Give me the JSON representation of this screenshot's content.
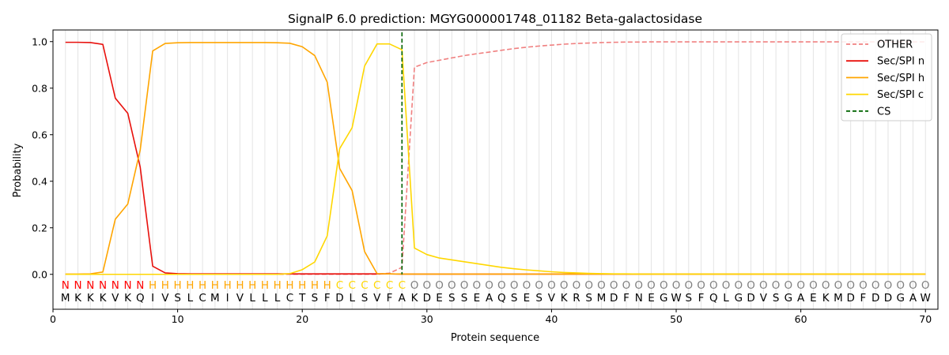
{
  "chart_data": {
    "type": "line",
    "title": "SignalP 6.0 prediction: MGYG000001748_01182 Beta-galactosidase",
    "xlabel": "Protein sequence",
    "ylabel": "Probability",
    "xlim": [
      0,
      71
    ],
    "ylim": [
      -0.15,
      1.05
    ],
    "xticks": [
      0,
      10,
      20,
      30,
      40,
      50,
      60,
      70
    ],
    "yticks": [
      "0.0",
      "0.2",
      "0.4",
      "0.6",
      "0.8",
      "1.0"
    ],
    "ytick_values": [
      0.0,
      0.2,
      0.4,
      0.6,
      0.8,
      1.0
    ],
    "grid": "vertical lines at each residue",
    "legend_position": "top-right",
    "sequence": [
      "M",
      "K",
      "K",
      "K",
      "V",
      "K",
      "Q",
      "I",
      "V",
      "S",
      "L",
      "C",
      "M",
      "I",
      "V",
      "L",
      "L",
      "L",
      "C",
      "T",
      "S",
      "F",
      "D",
      "L",
      "S",
      "V",
      "F",
      "A",
      "K",
      "D",
      "E",
      "S",
      "S",
      "E",
      "A",
      "Q",
      "S",
      "E",
      "S",
      "V",
      "K",
      "R",
      "S",
      "M",
      "D",
      "F",
      "N",
      "E",
      "G",
      "W",
      "S",
      "F",
      "Q",
      "L",
      "G",
      "D",
      "V",
      "S",
      "G",
      "A",
      "E",
      "K",
      "M",
      "D",
      "F",
      "D",
      "D",
      "G",
      "A",
      "W"
    ],
    "labels": [
      "N",
      "N",
      "N",
      "N",
      "N",
      "N",
      "N",
      "H",
      "H",
      "H",
      "H",
      "H",
      "H",
      "H",
      "H",
      "H",
      "H",
      "H",
      "H",
      "H",
      "H",
      "H",
      "C",
      "C",
      "C",
      "C",
      "C",
      "C",
      "O",
      "O",
      "O",
      "O",
      "O",
      "O",
      "O",
      "O",
      "O",
      "O",
      "O",
      "O",
      "O",
      "O",
      "O",
      "O",
      "O",
      "O",
      "O",
      "O",
      "O",
      "O",
      "O",
      "O",
      "O",
      "O",
      "O",
      "O",
      "O",
      "O",
      "O",
      "O",
      "O",
      "O",
      "O",
      "O",
      "O",
      "O",
      "O",
      "O",
      "O",
      "O"
    ],
    "label_colors": {
      "N": "#ff0000",
      "H": "#ffa500",
      "C": "#ffd700",
      "O": "#808080"
    },
    "cleavage_site": 28,
    "series": [
      {
        "name": "OTHER",
        "color": "#f08080",
        "dash": "dashed",
        "values": [
          0.0,
          0.0,
          0.0,
          0.0,
          0.0,
          0.0,
          0.0,
          0.0,
          0.0,
          0.0,
          0.0,
          0.0,
          0.0,
          0.0,
          0.0,
          0.0,
          0.0,
          0.0,
          0.0,
          0.0,
          0.0,
          0.0,
          0.0,
          0.0,
          0.0,
          0.0,
          0.005,
          0.03,
          0.89,
          0.91,
          0.92,
          0.93,
          0.94,
          0.948,
          0.955,
          0.963,
          0.97,
          0.976,
          0.981,
          0.985,
          0.989,
          0.992,
          0.994,
          0.996,
          0.997,
          0.998,
          0.998,
          0.999,
          0.999,
          0.999,
          0.999,
          0.999,
          0.999,
          0.999,
          0.999,
          0.999,
          0.999,
          0.999,
          0.999,
          0.999,
          0.999,
          0.999,
          0.999,
          0.999,
          0.999,
          0.999,
          0.999,
          0.999,
          0.999,
          0.999
        ]
      },
      {
        "name": "Sec/SPI n",
        "color": "#e8100c",
        "dash": "solid",
        "values": [
          0.997,
          0.997,
          0.996,
          0.988,
          0.757,
          0.692,
          0.46,
          0.035,
          0.006,
          0.003,
          0.002,
          0.002,
          0.002,
          0.002,
          0.002,
          0.002,
          0.002,
          0.002,
          0.002,
          0.002,
          0.002,
          0.002,
          0.002,
          0.002,
          0.002,
          0.002,
          0.002,
          0.001,
          0.001,
          0.001,
          0.001,
          0.001,
          0.001,
          0.001,
          0.001,
          0.001,
          0.001,
          0.001,
          0.001,
          0.001,
          0.001,
          0.001,
          0.001,
          0.001,
          0.001,
          0.001,
          0.001,
          0.001,
          0.001,
          0.001,
          0.001,
          0.001,
          0.001,
          0.001,
          0.001,
          0.001,
          0.001,
          0.001,
          0.001,
          0.001,
          0.001,
          0.001,
          0.001,
          0.001,
          0.001,
          0.001,
          0.001,
          0.001,
          0.001,
          0.001
        ]
      },
      {
        "name": "Sec/SPI h",
        "color": "#ffa500",
        "dash": "solid",
        "values": [
          0.001,
          0.001,
          0.002,
          0.01,
          0.237,
          0.302,
          0.535,
          0.96,
          0.992,
          0.995,
          0.996,
          0.996,
          0.996,
          0.996,
          0.996,
          0.996,
          0.996,
          0.995,
          0.993,
          0.978,
          0.94,
          0.826,
          0.455,
          0.36,
          0.098,
          0.003,
          0.002,
          0.001,
          0.001,
          0.001,
          0.001,
          0.001,
          0.001,
          0.001,
          0.001,
          0.001,
          0.001,
          0.001,
          0.001,
          0.001,
          0.001,
          0.001,
          0.001,
          0.001,
          0.001,
          0.001,
          0.001,
          0.001,
          0.001,
          0.001,
          0.001,
          0.001,
          0.001,
          0.001,
          0.001,
          0.001,
          0.001,
          0.001,
          0.001,
          0.001,
          0.001,
          0.001,
          0.001,
          0.001,
          0.001,
          0.001,
          0.001,
          0.001,
          0.001,
          0.001
        ]
      },
      {
        "name": "Sec/SPI c",
        "color": "#ffd700",
        "dash": "solid",
        "values": [
          0.0,
          0.0,
          0.0,
          0.0,
          0.0,
          0.0,
          0.0,
          0.0,
          0.0,
          0.0,
          0.0,
          0.0,
          0.0,
          0.0,
          0.0,
          0.0,
          0.0,
          0.0,
          0.003,
          0.02,
          0.053,
          0.165,
          0.54,
          0.63,
          0.895,
          0.99,
          0.99,
          0.965,
          0.113,
          0.085,
          0.07,
          0.062,
          0.054,
          0.046,
          0.038,
          0.03,
          0.024,
          0.019,
          0.015,
          0.011,
          0.008,
          0.006,
          0.004,
          0.003,
          0.002,
          0.002,
          0.001,
          0.001,
          0.001,
          0.001,
          0.001,
          0.001,
          0.001,
          0.001,
          0.001,
          0.001,
          0.001,
          0.001,
          0.001,
          0.001,
          0.001,
          0.001,
          0.001,
          0.001,
          0.001,
          0.001,
          0.001,
          0.001,
          0.001,
          0.001
        ]
      }
    ],
    "cs_legend": {
      "name": "CS",
      "color": "#006400",
      "dash": "dashed"
    }
  }
}
